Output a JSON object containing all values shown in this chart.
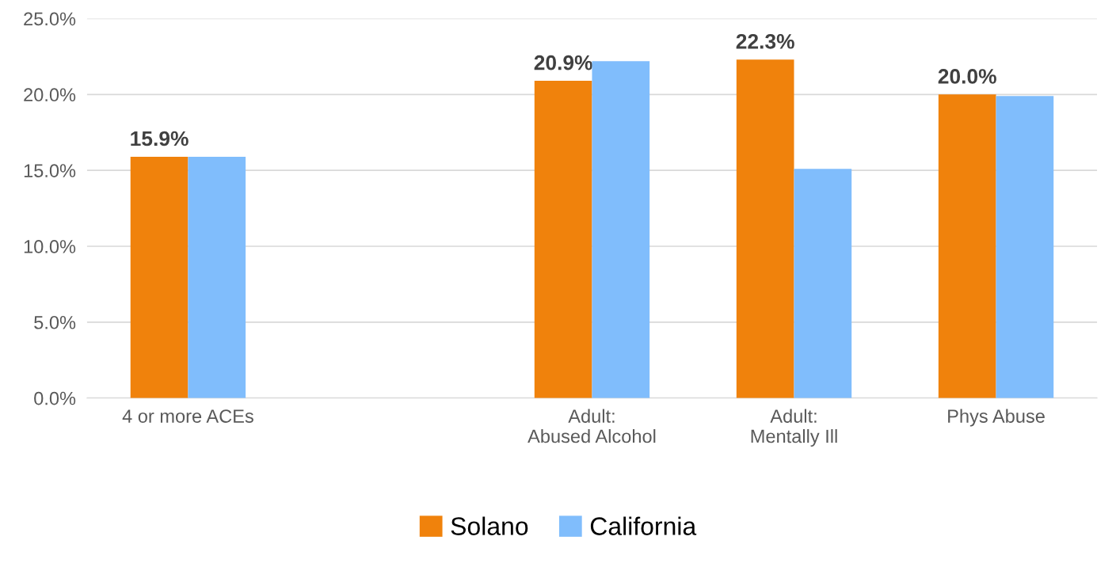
{
  "chart_data": {
    "type": "bar",
    "categories": [
      "4 or more ACEs",
      null,
      "Adult:\nAbused Alcohol",
      "Adult:\nMentally Ill",
      "Phys Abuse"
    ],
    "series": [
      {
        "name": "Solano",
        "color": "#f0820c",
        "values": [
          15.9,
          null,
          20.9,
          22.3,
          20.0
        ],
        "value_labels": [
          "15.9%",
          null,
          "20.9%",
          "22.3%",
          "20.0%"
        ]
      },
      {
        "name": "California",
        "color": "#80bdfc",
        "values": [
          15.9,
          null,
          22.2,
          15.1,
          19.9
        ]
      }
    ],
    "ylim": [
      0,
      25
    ],
    "yticks": [
      {
        "value": 0,
        "label": "0.0%"
      },
      {
        "value": 5,
        "label": "5.0%"
      },
      {
        "value": 10,
        "label": "10.0%"
      },
      {
        "value": 15,
        "label": "15.0%"
      },
      {
        "value": 20,
        "label": "20.0%"
      },
      {
        "value": 25,
        "label": "25.0%"
      }
    ],
    "grid": "y",
    "legend": "bottom"
  }
}
